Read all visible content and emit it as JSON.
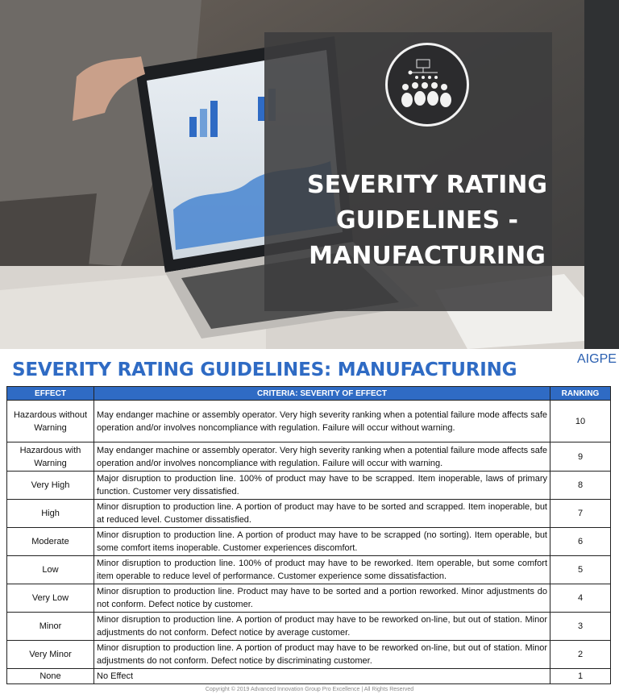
{
  "hero": {
    "title_lines": [
      "SEVERITY RATING",
      "GUIDELINES -",
      "MANUFACTURING"
    ],
    "logo_icon": "team-hierarchy-icon",
    "photo": "laptop-with-dashboard-charts"
  },
  "brand": "AIGPE",
  "document_title": "SEVERITY RATING GUIDELINES: MANUFACTURING",
  "table": {
    "headers": {
      "effect": "EFFECT",
      "criteria": "CRITERIA: SEVERITY OF EFFECT",
      "ranking": "RANKING"
    },
    "rows": [
      {
        "effect": "Hazardous without Warning",
        "criteria": "May endanger machine or assembly operator. Very high severity ranking when a potential failure mode affects safe operation and/or involves noncompliance with regulation. Failure will occur without warning.",
        "ranking": "10"
      },
      {
        "effect": "Hazardous with Warning",
        "criteria": "May endanger machine or assembly operator. Very high severity ranking when a potential failure mode affects safe operation and/or involves noncompliance with regulation. Failure will occur with warning.",
        "ranking": "9"
      },
      {
        "effect": "Very High",
        "criteria": "Major disruption to production line. 100% of product may have to be scrapped. Item inoperable, laws of primary function. Customer very dissatisfied.",
        "ranking": "8"
      },
      {
        "effect": "High",
        "criteria": "Minor disruption to production line. A portion of product may have to be sorted and scrapped. Item inoperable, but at reduced level. Customer dissatisfied.",
        "ranking": "7"
      },
      {
        "effect": "Moderate",
        "criteria": "Minor disruption to production line. A portion of product may have to be scrapped (no sorting). Item operable, but some comfort items inoperable. Customer experiences discomfort.",
        "ranking": "6"
      },
      {
        "effect": "Low",
        "criteria": "Minor disruption to production line. 100% of product may have to be reworked. Item operable, but some comfort item operable to reduce level of performance. Customer experience some dissatisfaction.",
        "ranking": "5"
      },
      {
        "effect": "Very Low",
        "criteria": "Minor disruption to production line. Product may have to be sorted and a portion reworked. Minor adjustments do not conform. Defect notice by customer.",
        "ranking": "4"
      },
      {
        "effect": "Minor",
        "criteria": "Minor disruption to production line. A portion of product may have to be reworked on-line, but out of station. Minor adjustments do not conform. Defect notice by average customer.",
        "ranking": "3"
      },
      {
        "effect": "Very Minor",
        "criteria": "Minor disruption to production line. A portion of product may have to be reworked on-line, but out of station. Minor adjustments do not conform. Defect notice by discriminating customer.",
        "ranking": "2"
      },
      {
        "effect": "None",
        "criteria": "No Effect",
        "ranking": "1"
      }
    ]
  },
  "footer": "Copyright © 2019 Advanced Innovation Group Pro Excellence | All Rights Reserved",
  "colors": {
    "accent_blue": "#2f6bc4",
    "overlay_grey": "#3c3c3e",
    "header_text": "#ffffff"
  }
}
